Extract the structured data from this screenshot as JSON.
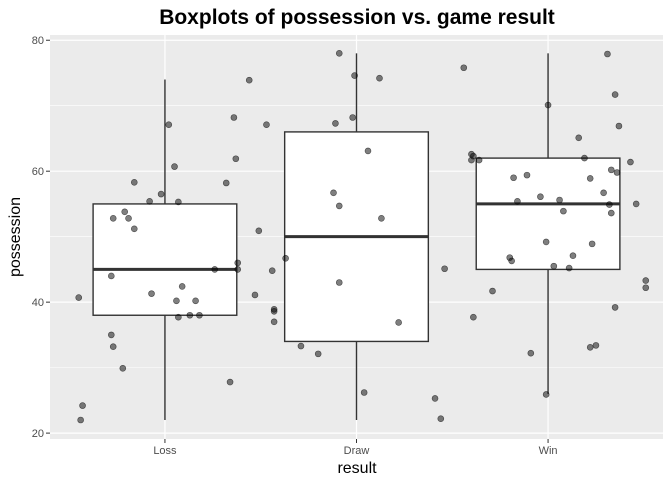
{
  "chart_data": {
    "type": "boxplot",
    "title": "Boxplots of possession vs. game result",
    "xlabel": "result",
    "ylabel": "possession",
    "categories": [
      "Loss",
      "Draw",
      "Win"
    ],
    "yticks": [
      20,
      40,
      60,
      80
    ],
    "ylim": [
      19.1,
      80.8
    ],
    "grid": true,
    "colors": {
      "panel": "#ebebeb",
      "grid": "#ffffff",
      "box_fill": "#ffffff",
      "box_line": "#333333",
      "point": "#000000"
    },
    "boxes": [
      {
        "category": "Loss",
        "lower_whisker": 22,
        "q1": 38,
        "median": 45,
        "q3": 55,
        "upper_whisker": 74
      },
      {
        "category": "Draw",
        "lower_whisker": 22,
        "q1": 34,
        "median": 50,
        "q3": 66,
        "upper_whisker": 78
      },
      {
        "category": "Win",
        "lower_whisker": 26,
        "q1": 45,
        "median": 55,
        "q3": 62,
        "upper_whisker": 78
      }
    ],
    "points": [
      {
        "x": 0.55,
        "y": 40.7
      },
      {
        "x": 0.57,
        "y": 24.2
      },
      {
        "x": 0.56,
        "y": 22.0
      },
      {
        "x": 0.72,
        "y": 35.0
      },
      {
        "x": 0.73,
        "y": 33.2
      },
      {
        "x": 0.73,
        "y": 52.8
      },
      {
        "x": 0.72,
        "y": 44.0
      },
      {
        "x": 0.79,
        "y": 53.8
      },
      {
        "x": 0.81,
        "y": 52.8
      },
      {
        "x": 0.84,
        "y": 58.3
      },
      {
        "x": 0.84,
        "y": 51.2
      },
      {
        "x": 0.78,
        "y": 29.9
      },
      {
        "x": 0.92,
        "y": 55.4
      },
      {
        "x": 0.93,
        "y": 41.3
      },
      {
        "x": 0.98,
        "y": 56.5
      },
      {
        "x": 1.02,
        "y": 67.1
      },
      {
        "x": 1.05,
        "y": 60.7
      },
      {
        "x": 1.07,
        "y": 55.3
      },
      {
        "x": 1.06,
        "y": 40.2
      },
      {
        "x": 1.07,
        "y": 37.7
      },
      {
        "x": 1.09,
        "y": 42.4
      },
      {
        "x": 1.13,
        "y": 38.0
      },
      {
        "x": 1.16,
        "y": 40.2
      },
      {
        "x": 1.18,
        "y": 38.0
      },
      {
        "x": 1.26,
        "y": 45.0
      },
      {
        "x": 1.32,
        "y": 58.2
      },
      {
        "x": 1.34,
        "y": 27.8
      },
      {
        "x": 1.36,
        "y": 68.2
      },
      {
        "x": 1.37,
        "y": 61.9
      },
      {
        "x": 1.38,
        "y": 45.0
      },
      {
        "x": 1.38,
        "y": 46.0
      },
      {
        "x": 1.44,
        "y": 73.9
      },
      {
        "x": 1.47,
        "y": 41.1
      },
      {
        "x": 1.49,
        "y": 50.9
      },
      {
        "x": 1.53,
        "y": 67.1
      },
      {
        "x": 1.56,
        "y": 44.8
      },
      {
        "x": 1.57,
        "y": 38.6
      },
      {
        "x": 1.57,
        "y": 38.9
      },
      {
        "x": 1.57,
        "y": 37.0
      },
      {
        "x": 1.63,
        "y": 46.7
      },
      {
        "x": 1.71,
        "y": 33.3
      },
      {
        "x": 1.8,
        "y": 32.1
      },
      {
        "x": 1.88,
        "y": 56.7
      },
      {
        "x": 1.91,
        "y": 54.7
      },
      {
        "x": 1.91,
        "y": 43.0
      },
      {
        "x": 1.89,
        "y": 67.3
      },
      {
        "x": 1.91,
        "y": 78.0
      },
      {
        "x": 1.98,
        "y": 68.2
      },
      {
        "x": 1.99,
        "y": 74.6
      },
      {
        "x": 2.04,
        "y": 26.2
      },
      {
        "x": 2.06,
        "y": 63.1
      },
      {
        "x": 2.13,
        "y": 52.8
      },
      {
        "x": 2.12,
        "y": 74.2
      },
      {
        "x": 2.22,
        "y": 36.9
      },
      {
        "x": 2.41,
        "y": 25.3
      },
      {
        "x": 2.44,
        "y": 22.2
      },
      {
        "x": 2.46,
        "y": 45.1
      },
      {
        "x": 2.56,
        "y": 75.8
      },
      {
        "x": 2.6,
        "y": 62.6
      },
      {
        "x": 2.6,
        "y": 61.7
      },
      {
        "x": 2.61,
        "y": 62.3
      },
      {
        "x": 2.64,
        "y": 61.7
      },
      {
        "x": 2.61,
        "y": 37.7
      },
      {
        "x": 2.71,
        "y": 41.7
      },
      {
        "x": 2.8,
        "y": 46.8
      },
      {
        "x": 2.81,
        "y": 46.3
      },
      {
        "x": 2.82,
        "y": 59.0
      },
      {
        "x": 2.84,
        "y": 55.4
      },
      {
        "x": 2.89,
        "y": 59.4
      },
      {
        "x": 2.91,
        "y": 32.2
      },
      {
        "x": 2.96,
        "y": 56.1
      },
      {
        "x": 2.99,
        "y": 49.2
      },
      {
        "x": 3.0,
        "y": 70.1
      },
      {
        "x": 2.99,
        "y": 25.9
      },
      {
        "x": 3.03,
        "y": 45.5
      },
      {
        "x": 3.06,
        "y": 55.6
      },
      {
        "x": 3.08,
        "y": 53.9
      },
      {
        "x": 3.11,
        "y": 45.2
      },
      {
        "x": 3.13,
        "y": 47.1
      },
      {
        "x": 3.16,
        "y": 65.1
      },
      {
        "x": 3.19,
        "y": 62.0
      },
      {
        "x": 3.22,
        "y": 58.9
      },
      {
        "x": 3.22,
        "y": 33.1
      },
      {
        "x": 3.23,
        "y": 48.9
      },
      {
        "x": 3.25,
        "y": 33.4
      },
      {
        "x": 3.29,
        "y": 56.7
      },
      {
        "x": 3.31,
        "y": 77.9
      },
      {
        "x": 3.32,
        "y": 54.9
      },
      {
        "x": 3.33,
        "y": 60.2
      },
      {
        "x": 3.33,
        "y": 53.6
      },
      {
        "x": 3.35,
        "y": 39.2
      },
      {
        "x": 3.35,
        "y": 71.7
      },
      {
        "x": 3.36,
        "y": 59.8
      },
      {
        "x": 3.37,
        "y": 66.9
      },
      {
        "x": 3.43,
        "y": 61.4
      },
      {
        "x": 3.46,
        "y": 55.0
      },
      {
        "x": 3.51,
        "y": 43.3
      },
      {
        "x": 3.51,
        "y": 42.2
      }
    ]
  }
}
